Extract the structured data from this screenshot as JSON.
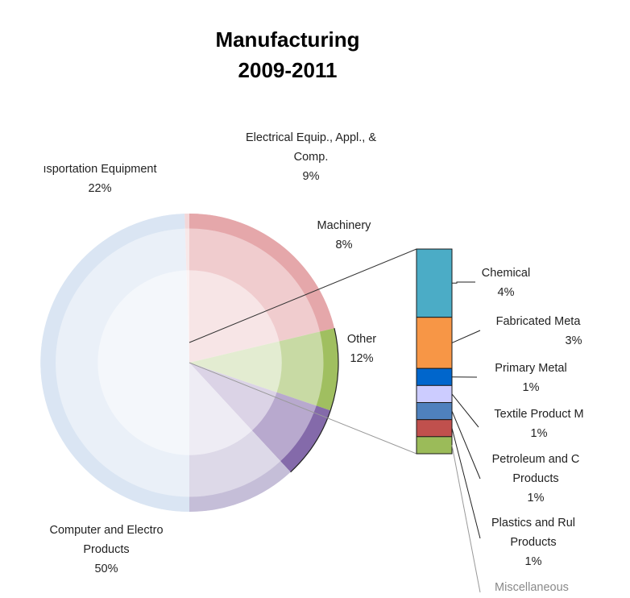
{
  "chart_data": {
    "type": "pie",
    "title_lines": [
      "Manufacturing",
      "2009-2011"
    ],
    "pie": {
      "slices": [
        {
          "name": "Computer and Electronic Products",
          "value": 50,
          "label_lines": [
            "Computer and Electro",
            "Products",
            "50%"
          ],
          "color": "#a9c3e2",
          "visible": true
        },
        {
          "name": "Transportation Equipment",
          "value": 22,
          "label_lines": [
            "ısportation Equipment",
            "22%"
          ],
          "color": "#e3a3a6",
          "visible": true
        },
        {
          "name": "Electrical Equip., Appl., & Comp.",
          "value": 9,
          "label_lines": [
            "Electrical Equip., Appl., &",
            "Comp.",
            "9%"
          ],
          "color": "#9bbb59",
          "visible": true
        },
        {
          "name": "Machinery",
          "value": 8,
          "label_lines": [
            "Machinery",
            "8%"
          ],
          "color": "#7e63a6",
          "visible": true
        },
        {
          "name": "Other",
          "value": 12,
          "label_lines": [
            "Other",
            "12%"
          ],
          "color": "#c2bad6",
          "visible": true
        }
      ]
    },
    "breakdown": {
      "parent": "Other",
      "items": [
        {
          "name": "Chemical",
          "value": 4,
          "label_lines": [
            "Chemical",
            "4%"
          ],
          "color": "#4bacc6"
        },
        {
          "name": "Fabricated Metal",
          "value": 3,
          "label_lines": [
            "Fabricated Meta",
            "3%"
          ],
          "color": "#f79646"
        },
        {
          "name": "Primary Metal",
          "value": 1,
          "label_lines": [
            "Primary Metal",
            "1%"
          ],
          "color": "#0066cc"
        },
        {
          "name": "Textile Product Mills",
          "value": 1,
          "label_lines": [
            "Textile Product M",
            "1%"
          ],
          "color": "#ccccff"
        },
        {
          "name": "Petroleum and Coal Products",
          "value": 1,
          "label_lines": [
            "Petroleum and C",
            "Products",
            "1%"
          ],
          "color": "#4f81bd"
        },
        {
          "name": "Plastics and Rubber Products",
          "value": 1,
          "label_lines": [
            "Plastics and Rul",
            "Products",
            "1%"
          ],
          "color": "#c0504d"
        },
        {
          "name": "Miscellaneous",
          "value": 1,
          "label_lines": [
            "Miscellaneous"
          ],
          "color": "#9bbb59"
        }
      ]
    }
  }
}
